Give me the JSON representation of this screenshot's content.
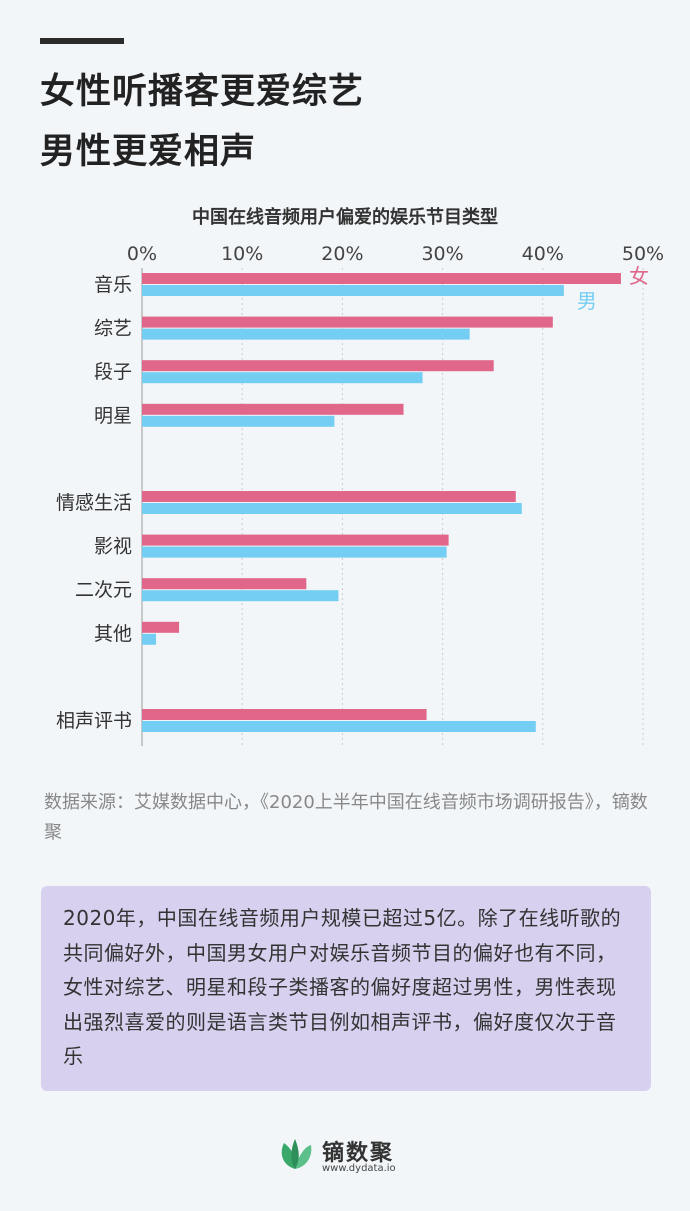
{
  "title_lines": [
    "女性听播客更爱综艺",
    "男性更爱相声"
  ],
  "chart_data": {
    "type": "bar",
    "orientation": "horizontal",
    "title": "中国在线音频用户偏爱的娱乐节目类型",
    "categories": [
      "音乐",
      "综艺",
      "段子",
      "明星",
      "",
      "情感生活",
      "影视",
      "二次元",
      "其他",
      "",
      "相声评书"
    ],
    "series": [
      {
        "name": "女",
        "color": "#e0668a",
        "values": [
          47.8,
          41.0,
          35.1,
          26.1,
          null,
          37.3,
          30.6,
          16.4,
          3.7,
          null,
          28.4
        ]
      },
      {
        "name": "男",
        "color": "#74cdf2",
        "values": [
          42.1,
          32.7,
          28.0,
          19.2,
          null,
          37.9,
          30.4,
          19.6,
          1.4,
          null,
          39.3
        ]
      }
    ],
    "xlim": [
      0,
      50
    ],
    "tick_labels": [
      "0%",
      "10%",
      "20%",
      "30%",
      "40%",
      "50%"
    ],
    "grid": true,
    "legend": "inline-end-of-first-bars"
  },
  "source_text": "数据来源：艾媒数据中心，《2020上半年中国在线音频市场调研报告》，镝数聚",
  "callout_text": "2020年，中国在线音频用户规模已超过5亿。除了在线听歌的共同偏好外，中国男女用户对娱乐音频节目的偏好也有不同，女性对综艺、明星和段子类播客的偏好度超过男性，男性表现出强烈喜爱的则是语言类节目例如相声评书，偏好度仅次于音乐",
  "logo": {
    "name": "镝数聚",
    "url": "www.dydata.io"
  },
  "colors": {
    "female": "#e0668a",
    "male": "#74cdf2",
    "callout_bg": "#d7d0ef",
    "logo_green": "#3aa86b"
  }
}
